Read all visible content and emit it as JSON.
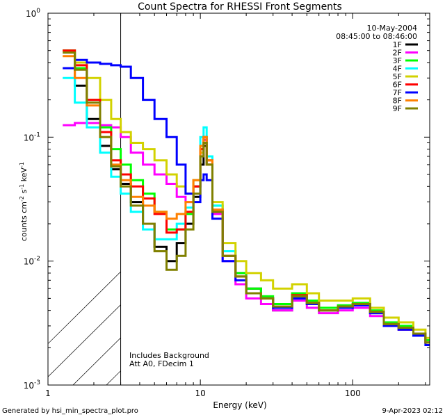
{
  "chart_data": {
    "type": "line",
    "title": "Count Spectra for RHESSI Front Segments",
    "xlabel": "Energy (keV)",
    "ylabel_parts": [
      "counts cm",
      "-2",
      " s",
      "-1",
      " keV",
      "-1"
    ],
    "xscale": "log",
    "yscale": "log",
    "xlim": [
      1.0,
      320.0
    ],
    "ylim": [
      0.001,
      1.0
    ],
    "x_ticks": [
      {
        "value": 1,
        "label": "1"
      },
      {
        "value": 10,
        "label": "10"
      },
      {
        "value": 100,
        "label": "100"
      }
    ],
    "y_ticks": [
      {
        "value": 1,
        "base": "10",
        "exp": "0"
      },
      {
        "value": 0.1,
        "base": "10",
        "exp": "-1"
      },
      {
        "value": 0.01,
        "base": "10",
        "exp": "-2"
      },
      {
        "value": 0.001,
        "base": "10",
        "exp": "-3"
      }
    ],
    "legend_header": [
      "10-May-2004",
      "08:45:00 to 08:46:00"
    ],
    "legend_position": "top-right",
    "annotations": [
      "Includes Background",
      "Att A0, FDecim 1"
    ],
    "hatched_region_xmax": 3.0,
    "series": [
      {
        "name": "1F",
        "color": "#000000",
        "x": [
          1.25,
          1.5,
          1.8,
          2.2,
          2.6,
          3.0,
          3.5,
          4.2,
          5.0,
          6.0,
          7.0,
          8.0,
          9.0,
          10.0,
          10.5,
          11.0,
          12.0,
          14.0,
          17.0,
          20.0,
          25.0,
          30.0,
          40.0,
          50.0,
          60.0,
          80.0,
          100.0,
          130.0,
          160.0,
          200.0,
          250.0,
          300.0
        ],
        "y": [
          0.5,
          0.26,
          0.14,
          0.085,
          0.055,
          0.042,
          0.03,
          0.02,
          0.013,
          0.01,
          0.014,
          0.02,
          0.033,
          0.06,
          0.085,
          0.06,
          0.025,
          0.011,
          0.008,
          0.006,
          0.005,
          0.004,
          0.0052,
          0.0045,
          0.004,
          0.0042,
          0.0045,
          0.0038,
          0.003,
          0.0028,
          0.0025,
          0.0022
        ]
      },
      {
        "name": "2F",
        "color": "#ff00ff",
        "x": [
          1.25,
          1.5,
          1.8,
          2.2,
          2.6,
          3.0,
          3.5,
          4.2,
          5.0,
          6.0,
          7.0,
          8.0,
          9.0,
          10.0,
          10.5,
          11.0,
          12.0,
          14.0,
          17.0,
          20.0,
          25.0,
          30.0,
          40.0,
          50.0,
          60.0,
          80.0,
          100.0,
          130.0,
          160.0,
          200.0,
          250.0,
          300.0
        ],
        "y": [
          0.125,
          0.13,
          0.13,
          0.125,
          0.12,
          0.1,
          0.075,
          0.06,
          0.05,
          0.042,
          0.033,
          0.03,
          0.04,
          0.075,
          0.095,
          0.06,
          0.024,
          0.01,
          0.0065,
          0.005,
          0.0045,
          0.004,
          0.0048,
          0.0042,
          0.0038,
          0.004,
          0.0042,
          0.0036,
          0.003,
          0.0028,
          0.0025,
          0.0022
        ]
      },
      {
        "name": "3F",
        "color": "#00ff00",
        "x": [
          1.25,
          1.5,
          1.8,
          2.2,
          2.6,
          3.0,
          3.5,
          4.2,
          5.0,
          6.0,
          7.0,
          8.0,
          9.0,
          10.0,
          10.5,
          11.0,
          12.0,
          14.0,
          17.0,
          20.0,
          25.0,
          30.0,
          40.0,
          50.0,
          60.0,
          80.0,
          100.0,
          130.0,
          160.0,
          200.0,
          250.0,
          300.0
        ],
        "y": [
          0.5,
          0.36,
          0.2,
          0.12,
          0.08,
          0.06,
          0.045,
          0.035,
          0.025,
          0.018,
          0.018,
          0.024,
          0.04,
          0.08,
          0.1,
          0.07,
          0.028,
          0.012,
          0.008,
          0.006,
          0.0052,
          0.0045,
          0.0055,
          0.0048,
          0.0042,
          0.0044,
          0.0046,
          0.004,
          0.0032,
          0.003,
          0.0026,
          0.0023
        ]
      },
      {
        "name": "4F",
        "color": "#00ffff",
        "x": [
          1.25,
          1.5,
          1.8,
          2.2,
          2.6,
          3.0,
          3.5,
          4.2,
          5.0,
          6.0,
          7.0,
          8.0,
          9.0,
          10.0,
          10.5,
          11.0,
          12.0,
          14.0,
          17.0,
          20.0,
          25.0,
          30.0,
          40.0,
          50.0,
          60.0,
          80.0,
          100.0,
          130.0,
          160.0,
          200.0,
          250.0,
          300.0
        ],
        "y": [
          0.3,
          0.19,
          0.12,
          0.075,
          0.048,
          0.035,
          0.025,
          0.018,
          0.015,
          0.015,
          0.02,
          0.027,
          0.045,
          0.1,
          0.12,
          0.07,
          0.028,
          0.012,
          0.0075,
          0.0055,
          0.005,
          0.0042,
          0.005,
          0.0045,
          0.004,
          0.0042,
          0.0044,
          0.0038,
          0.0031,
          0.0029,
          0.0026,
          0.0022
        ]
      },
      {
        "name": "5F",
        "color": "#d2d200",
        "x": [
          1.25,
          1.5,
          1.8,
          2.2,
          2.6,
          3.0,
          3.5,
          4.2,
          5.0,
          6.0,
          7.0,
          8.0,
          9.0,
          10.0,
          10.5,
          11.0,
          12.0,
          14.0,
          17.0,
          20.0,
          25.0,
          30.0,
          40.0,
          50.0,
          60.0,
          80.0,
          100.0,
          130.0,
          160.0,
          200.0,
          250.0,
          300.0
        ],
        "y": [
          0.5,
          0.4,
          0.3,
          0.2,
          0.14,
          0.11,
          0.09,
          0.08,
          0.065,
          0.05,
          0.04,
          0.035,
          0.045,
          0.075,
          0.09,
          0.06,
          0.03,
          0.014,
          0.01,
          0.008,
          0.007,
          0.006,
          0.0065,
          0.0055,
          0.0048,
          0.0048,
          0.005,
          0.0042,
          0.0035,
          0.0032,
          0.0028,
          0.0024
        ]
      },
      {
        "name": "6F",
        "color": "#ff0000",
        "x": [
          1.25,
          1.5,
          1.8,
          2.2,
          2.6,
          3.0,
          3.5,
          4.2,
          5.0,
          6.0,
          7.0,
          8.0,
          9.0,
          10.0,
          10.5,
          11.0,
          12.0,
          14.0,
          17.0,
          20.0,
          25.0,
          30.0,
          40.0,
          50.0,
          60.0,
          80.0,
          100.0,
          130.0,
          160.0,
          200.0,
          250.0,
          300.0
        ],
        "y": [
          0.5,
          0.38,
          0.2,
          0.11,
          0.065,
          0.05,
          0.04,
          0.032,
          0.024,
          0.017,
          0.018,
          0.025,
          0.04,
          0.08,
          0.1,
          0.065,
          0.026,
          0.011,
          0.0075,
          0.0055,
          0.005,
          0.0043,
          0.0053,
          0.0046,
          0.004,
          0.0043,
          0.0045,
          0.0039,
          0.0031,
          0.0029,
          0.0026,
          0.0022
        ]
      },
      {
        "name": "7F",
        "color": "#0000ff",
        "x": [
          1.25,
          1.5,
          1.8,
          2.2,
          2.6,
          3.0,
          3.5,
          4.2,
          5.0,
          6.0,
          7.0,
          8.0,
          9.0,
          10.0,
          10.5,
          11.0,
          12.0,
          14.0,
          17.0,
          20.0,
          25.0,
          30.0,
          40.0,
          50.0,
          60.0,
          80.0,
          100.0,
          130.0,
          160.0,
          200.0,
          250.0,
          300.0
        ],
        "y": [
          0.36,
          0.42,
          0.4,
          0.39,
          0.38,
          0.37,
          0.3,
          0.2,
          0.14,
          0.1,
          0.06,
          0.035,
          0.03,
          0.045,
          0.05,
          0.045,
          0.022,
          0.01,
          0.007,
          0.0055,
          0.005,
          0.0042,
          0.005,
          0.0045,
          0.004,
          0.0042,
          0.0044,
          0.0038,
          0.003,
          0.0028,
          0.0025,
          0.0021
        ]
      },
      {
        "name": "8F",
        "color": "#ff8000",
        "x": [
          1.25,
          1.5,
          1.8,
          2.2,
          2.6,
          3.0,
          3.5,
          4.2,
          5.0,
          6.0,
          7.0,
          8.0,
          9.0,
          10.0,
          10.5,
          11.0,
          12.0,
          14.0,
          17.0,
          20.0,
          25.0,
          30.0,
          40.0,
          50.0,
          60.0,
          80.0,
          100.0,
          130.0,
          160.0,
          200.0,
          250.0,
          300.0
        ],
        "y": [
          0.45,
          0.3,
          0.18,
          0.1,
          0.06,
          0.045,
          0.033,
          0.028,
          0.025,
          0.022,
          0.024,
          0.03,
          0.045,
          0.085,
          0.1,
          0.065,
          0.026,
          0.011,
          0.0075,
          0.0055,
          0.005,
          0.0043,
          0.0052,
          0.0046,
          0.004,
          0.0043,
          0.0045,
          0.0039,
          0.0031,
          0.0029,
          0.0026,
          0.0022
        ]
      },
      {
        "name": "9F",
        "color": "#808000",
        "x": [
          1.25,
          1.5,
          1.8,
          2.2,
          2.6,
          3.0,
          3.5,
          4.2,
          5.0,
          6.0,
          7.0,
          8.0,
          9.0,
          10.0,
          10.5,
          11.0,
          12.0,
          14.0,
          17.0,
          20.0,
          25.0,
          30.0,
          40.0,
          50.0,
          60.0,
          80.0,
          100.0,
          130.0,
          160.0,
          200.0,
          250.0,
          300.0
        ],
        "y": [
          0.48,
          0.35,
          0.19,
          0.1,
          0.058,
          0.04,
          0.028,
          0.02,
          0.012,
          0.0085,
          0.011,
          0.018,
          0.035,
          0.07,
          0.09,
          0.06,
          0.025,
          0.011,
          0.0075,
          0.0055,
          0.005,
          0.0043,
          0.0052,
          0.0046,
          0.004,
          0.0043,
          0.0045,
          0.0039,
          0.0031,
          0.0029,
          0.0026,
          0.0022
        ]
      }
    ]
  },
  "footer": {
    "generated_by": "Generated by hsi_min_spectra_plot.pro",
    "timestamp": "9-Apr-2023 02:12"
  }
}
